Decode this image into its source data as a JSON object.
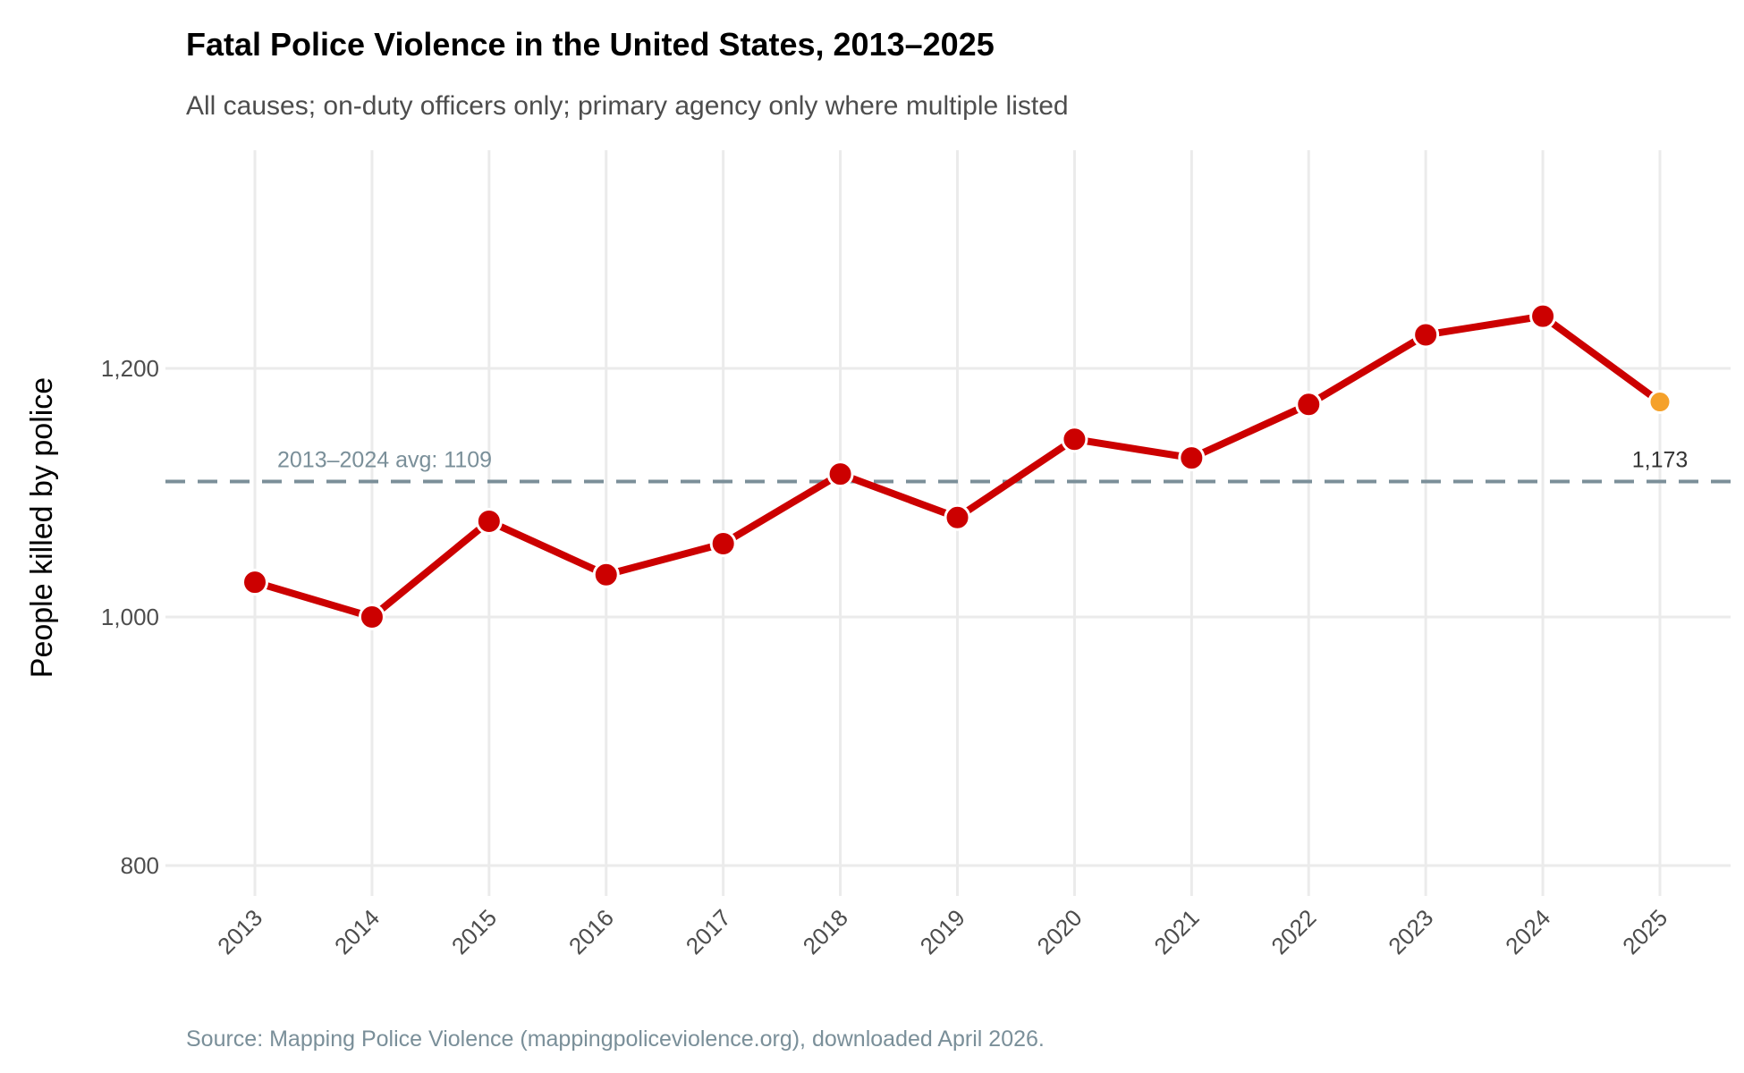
{
  "chart_data": {
    "type": "line",
    "title": "Fatal Police Violence in the United States, 2013–2025",
    "subtitle": "All causes; on-duty officers only; primary agency only where multiple listed",
    "xlabel": "",
    "ylabel": "People killed by police",
    "caption": "Source: Mapping Police Violence (mappingpoliceviolence.org), downloaded April 2026.",
    "x": [
      2013,
      2014,
      2015,
      2016,
      2017,
      2018,
      2019,
      2020,
      2021,
      2022,
      2023,
      2024,
      2025
    ],
    "x_tick_labels": [
      "2013",
      "2014",
      "2015",
      "2016",
      "2017",
      "2018",
      "2019",
      "2020",
      "2021",
      "2022",
      "2023",
      "2024",
      "2025"
    ],
    "series": [
      {
        "values": [
          1028,
          1000,
          1077,
          1034,
          1059,
          1115,
          1080,
          1143,
          1128,
          1171,
          1227,
          1242,
          1173
        ],
        "color": "#cc0000"
      }
    ],
    "highlight_last": {
      "year": 2025,
      "value": 1173,
      "label": "1,173",
      "color": "#f5a12a"
    },
    "reference_line": {
      "value": 1109,
      "label": "2013–2024 avg: 1109",
      "style": "dashed",
      "color": "#7b8f99"
    },
    "y_ticks": [
      800,
      1000,
      1200
    ],
    "y_tick_labels": [
      "800",
      "1,000",
      "1,200"
    ],
    "ylim": [
      780,
      1320
    ],
    "grid": true,
    "x_tick_rotation": 45
  }
}
